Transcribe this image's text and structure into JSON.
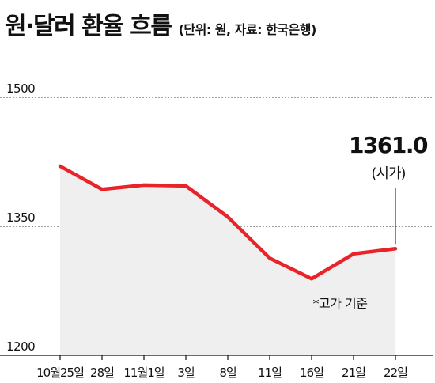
{
  "header": {
    "title": "원·달러 환율 흐름",
    "subtitle": "(단위: 원, 자료: 한국은행)"
  },
  "chart_data": {
    "type": "area",
    "title": "원·달러 환율 흐름",
    "unit_note": "(단위: 원, 자료: 한국은행)",
    "categories": [
      "10월25일",
      "28일",
      "11월1일",
      "3일",
      "8일",
      "11일",
      "16일",
      "21일",
      "22일"
    ],
    "series": [
      {
        "values": [
          1420,
          1393,
          1398,
          1397,
          1361,
          1313,
          1289,
          1318,
          1324
        ]
      }
    ],
    "ylim": [
      1200,
      1500
    ],
    "yticks": [
      1200,
      1350,
      1500
    ],
    "grid": "dashed at 1350 and 1500",
    "annotation": {
      "value": "1361.0",
      "note": "(시가)"
    },
    "footnote": "*고가 기준",
    "colors": {
      "line": "#e8242a",
      "area": "#efefef",
      "text": "#111111"
    }
  }
}
